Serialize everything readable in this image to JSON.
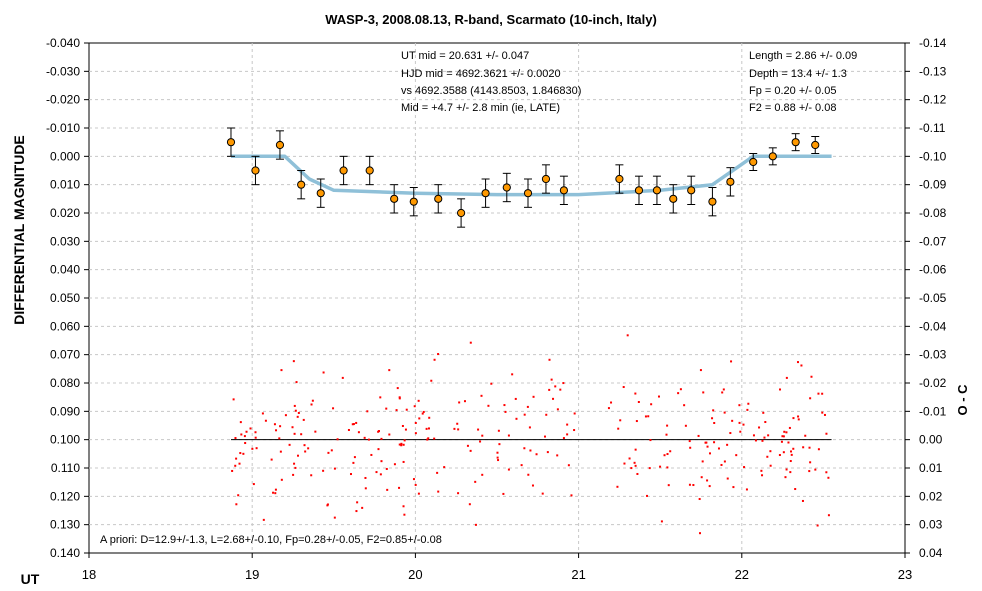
{
  "chart_data": {
    "type": "scatter",
    "title": "WASP-3, 2008.08.13, R-band, Scarmato (10-inch, Italy)",
    "xlabel": "UT",
    "ylabel": "DIFFERENTIAL MAGNITUDE",
    "y2label": "O - C",
    "xlim": [
      18,
      23
    ],
    "ylim": [
      -0.04,
      0.14
    ],
    "y_inverted": true,
    "y2lim": [
      -0.14,
      0.04
    ],
    "x_ticks": [
      "18",
      "19",
      "20",
      "21",
      "22",
      "23"
    ],
    "y_ticks": [
      "-0.040",
      "-0.030",
      "-0.020",
      "-0.010",
      "0.000",
      "0.010",
      "0.020",
      "0.030",
      "0.040",
      "0.050",
      "0.060",
      "0.070",
      "0.080",
      "0.090",
      "0.100",
      "0.110",
      "0.120",
      "0.130",
      "0.140"
    ],
    "y2_ticks": [
      "-0.14",
      "-0.13",
      "-0.12",
      "-0.11",
      "-0.10",
      "-0.09",
      "-0.08",
      "-0.07",
      "-0.06",
      "-0.05",
      "-0.04",
      "-0.03",
      "-0.02",
      "-0.01",
      "0.00",
      "0.01",
      "0.02",
      "0.03",
      "0.04"
    ],
    "grid": true,
    "annotations_center": [
      "UT mid = 20.631 +/- 0.047",
      "HJD mid = 4692.3621 +/- 0.0020",
      "vs 4692.3588  (4143.8503, 1.846830)",
      "Mid = +4.7 +/- 2.8 min (ie, LATE)"
    ],
    "annotations_right": [
      "Length = 2.86 +/- 0.09",
      "Depth = 13.4 +/- 1.3",
      "Fp = 0.20 +/- 0.05",
      "F2 = 0.88 +/- 0.08"
    ],
    "annotation_bottom": "A priori: D=12.9+/-1.3, L=2.68+/-0.10, Fp=0.28+/-0.05, F2=0.85+/-0.08",
    "colors": {
      "binned_marker": "#ff9900",
      "model_line": "#8fc0d8",
      "residual_dots": "#ff0000",
      "residual_zero_line": "#000000",
      "grid": "#c8c8c8"
    },
    "series": [
      {
        "type": "errorbar-scatter",
        "points": [
          {
            "x": 18.87,
            "y": -0.005,
            "err": 0.005
          },
          {
            "x": 19.02,
            "y": 0.005,
            "err": 0.005
          },
          {
            "x": 19.17,
            "y": -0.004,
            "err": 0.005
          },
          {
            "x": 19.3,
            "y": 0.01,
            "err": 0.005
          },
          {
            "x": 19.42,
            "y": 0.013,
            "err": 0.005
          },
          {
            "x": 19.56,
            "y": 0.005,
            "err": 0.005
          },
          {
            "x": 19.72,
            "y": 0.005,
            "err": 0.005
          },
          {
            "x": 19.87,
            "y": 0.015,
            "err": 0.005
          },
          {
            "x": 19.99,
            "y": 0.016,
            "err": 0.005
          },
          {
            "x": 20.14,
            "y": 0.015,
            "err": 0.005
          },
          {
            "x": 20.28,
            "y": 0.02,
            "err": 0.005
          },
          {
            "x": 20.43,
            "y": 0.013,
            "err": 0.005
          },
          {
            "x": 20.56,
            "y": 0.011,
            "err": 0.005
          },
          {
            "x": 20.69,
            "y": 0.013,
            "err": 0.005
          },
          {
            "x": 20.8,
            "y": 0.008,
            "err": 0.005
          },
          {
            "x": 20.91,
            "y": 0.012,
            "err": 0.005
          },
          {
            "x": 21.25,
            "y": 0.008,
            "err": 0.005
          },
          {
            "x": 21.37,
            "y": 0.012,
            "err": 0.005
          },
          {
            "x": 21.48,
            "y": 0.012,
            "err": 0.005
          },
          {
            "x": 21.58,
            "y": 0.015,
            "err": 0.005
          },
          {
            "x": 21.69,
            "y": 0.012,
            "err": 0.005
          },
          {
            "x": 21.82,
            "y": 0.016,
            "err": 0.005
          },
          {
            "x": 21.93,
            "y": 0.009,
            "err": 0.005
          },
          {
            "x": 22.07,
            "y": 0.002,
            "err": 0.003
          },
          {
            "x": 22.19,
            "y": 0.0,
            "err": 0.003
          },
          {
            "x": 22.33,
            "y": -0.005,
            "err": 0.003
          },
          {
            "x": 22.45,
            "y": -0.004,
            "err": 0.003
          }
        ]
      },
      {
        "type": "model-line",
        "x": [
          18.87,
          19.2,
          19.35,
          19.5,
          20.0,
          20.5,
          21.0,
          21.5,
          21.82,
          21.97,
          22.07,
          22.55
        ],
        "y": [
          0.0,
          0.0,
          0.008,
          0.012,
          0.013,
          0.0135,
          0.0135,
          0.012,
          0.01,
          0.004,
          0.0,
          0.0
        ]
      },
      {
        "type": "residual-scatter",
        "axis": "y2",
        "x_range": [
          18.87,
          22.55
        ],
        "gap": [
          20.98,
          21.18
        ],
        "count": 360,
        "sigma": 0.013
      },
      {
        "type": "residual-zero-line",
        "axis": "y2",
        "x": [
          18.87,
          22.55
        ],
        "y": [
          0.0,
          0.0
        ]
      }
    ]
  }
}
